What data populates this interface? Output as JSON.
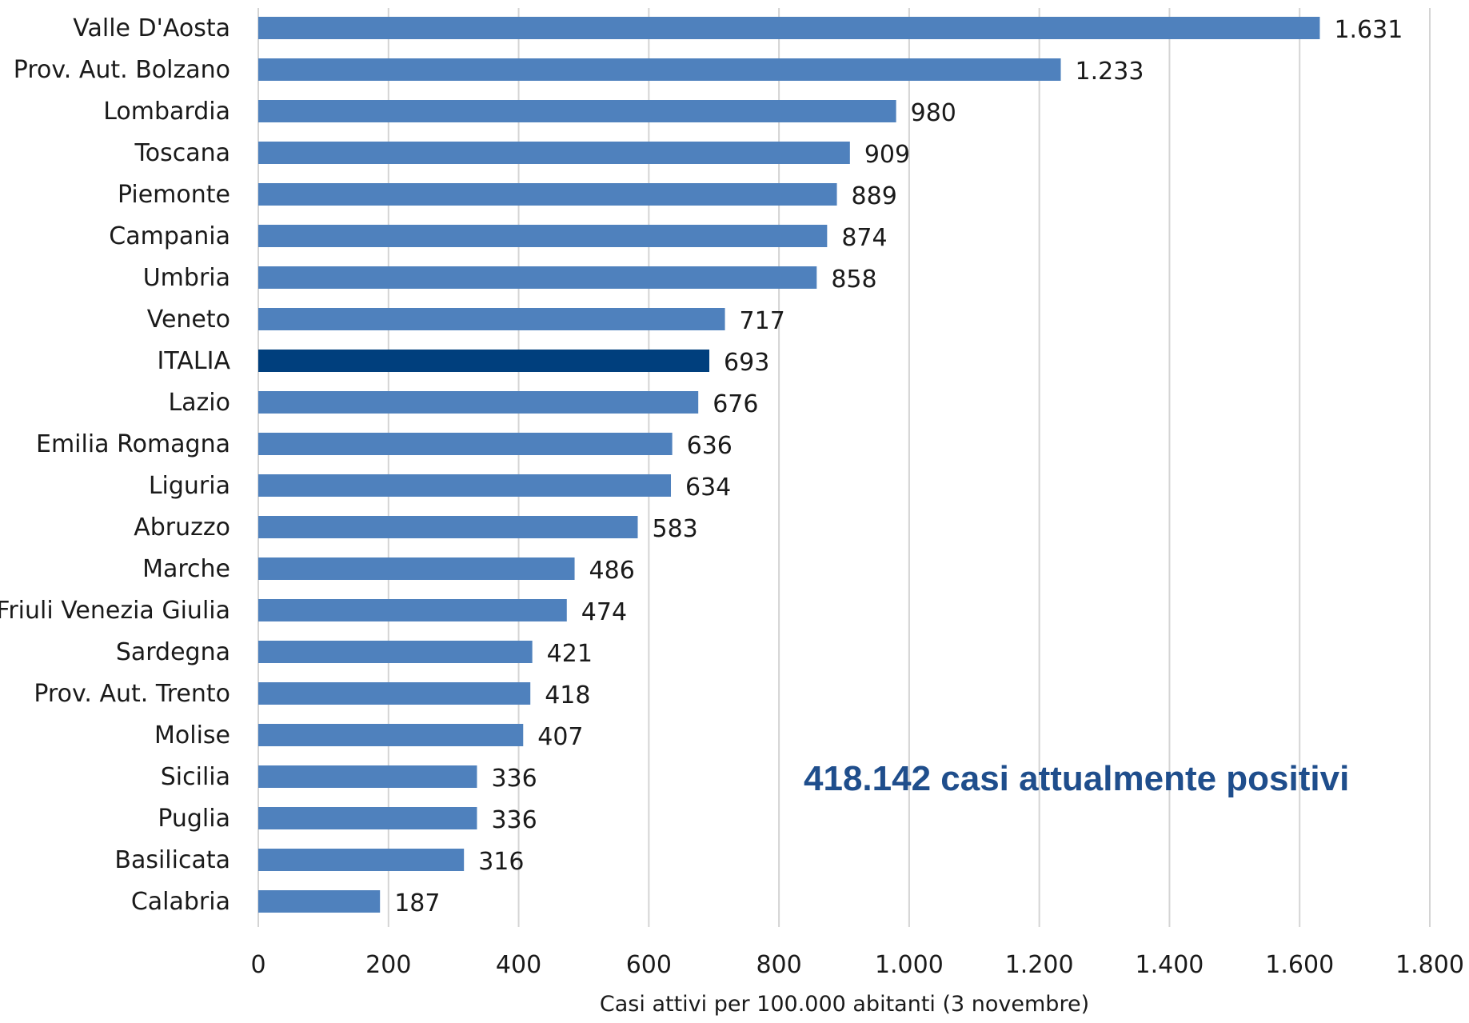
{
  "chart_data": {
    "type": "bar",
    "orientation": "horizontal",
    "categories": [
      "Valle D'Aosta",
      "Prov. Aut. Bolzano",
      "Lombardia",
      "Toscana",
      "Piemonte",
      "Campania",
      "Umbria",
      "Veneto",
      "ITALIA",
      "Lazio",
      "Emilia Romagna",
      "Liguria",
      "Abruzzo",
      "Marche",
      "Friuli Venezia Giulia",
      "Sardegna",
      "Prov. Aut. Trento",
      "Molise",
      "Sicilia",
      "Puglia",
      "Basilicata",
      "Calabria"
    ],
    "values": [
      1631,
      1233,
      980,
      909,
      889,
      874,
      858,
      717,
      693,
      676,
      636,
      634,
      583,
      486,
      474,
      421,
      418,
      407,
      336,
      336,
      316,
      187
    ],
    "value_labels": [
      "1.631",
      "1.233",
      "980",
      "909",
      "889",
      "874",
      "858",
      "717",
      "693",
      "676",
      "636",
      "634",
      "583",
      "486",
      "474",
      "421",
      "418",
      "407",
      "336",
      "336",
      "316",
      "187"
    ],
    "highlight_category": "ITALIA",
    "xlim": [
      0,
      1800
    ],
    "xticks": [
      0,
      200,
      400,
      600,
      800,
      1000,
      1200,
      1400,
      1600,
      1800
    ],
    "xtick_labels": [
      "0",
      "200",
      "400",
      "600",
      "800",
      "1.000",
      "1.200",
      "1.400",
      "1.600",
      "1.800"
    ],
    "xlabel": "Casi attivi per 100.000 abitanti (3 novembre)",
    "annotation": "418.142 casi attualmente positivi",
    "grid": "vertical",
    "colors": {
      "bar": "#4f81bd",
      "highlight": "#003f7d",
      "annotation": "#1f4e8c"
    }
  }
}
